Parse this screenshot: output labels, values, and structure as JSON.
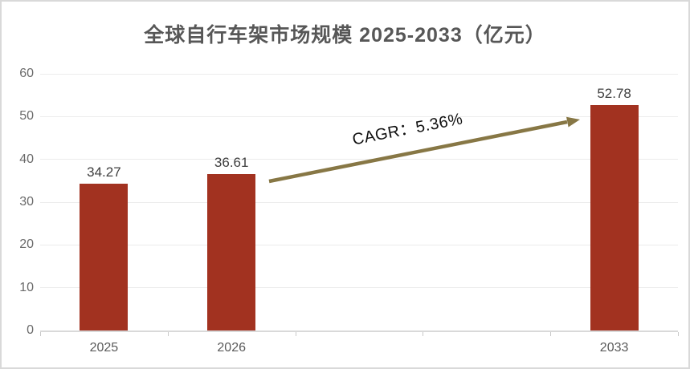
{
  "chart_data": {
    "type": "bar",
    "title": "全球自行车架市场规模 2025-2033（亿元）",
    "categories": [
      "2025",
      "2026",
      "2033"
    ],
    "values": [
      34.27,
      36.61,
      52.78
    ],
    "bar_slots": [
      0,
      1,
      4
    ],
    "n_slots": 5,
    "xlabel": "",
    "ylabel": "",
    "ylim": [
      0,
      60
    ],
    "yticks": [
      0,
      10,
      20,
      30,
      40,
      50,
      60
    ],
    "grid": true,
    "legend": "none",
    "annotation": {
      "text": "CAGR：5.36%"
    },
    "colors": {
      "bar": "#A23220",
      "arrow": "#877745",
      "title": "#575757",
      "axis_text": "#595959",
      "y_axis_text": "#6B6B6B",
      "value_label": "#404040",
      "gridline": "#ECECEC",
      "axis_line": "#D9D9D9",
      "border": "#D9D9D9",
      "annotation_text": "#111111"
    }
  }
}
